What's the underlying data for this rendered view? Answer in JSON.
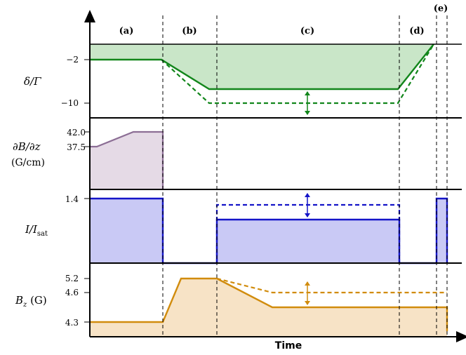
{
  "phases": [
    "(a)",
    "(b)",
    "(c)",
    "(d)",
    "(e)"
  ],
  "x_axis_label": "Time",
  "panels": {
    "detuning": {
      "label_main": "δ/Γ",
      "ticks": [
        "−2",
        "−10"
      ],
      "colors": {
        "line": "#12861b",
        "fill": "#c9e6c8"
      }
    },
    "gradient": {
      "label_line1": "∂B/∂z",
      "label_line2": "(G/cm)",
      "ticks": [
        "42.0",
        "37.5"
      ],
      "colors": {
        "line": "#8c6e95",
        "fill": "#e5dae6"
      }
    },
    "intensity": {
      "label_main": "I/I",
      "label_sub": "sat",
      "ticks": [
        "1.4"
      ],
      "colors": {
        "line": "#1414c8",
        "fill": "#c9c9f5"
      }
    },
    "bfield": {
      "label_main": "B",
      "label_sub": "z",
      "label_unit": " (G)",
      "ticks": [
        "5.2",
        "4.6",
        "4.3"
      ],
      "colors": {
        "line": "#d18c0d",
        "fill": "#f7e3c6"
      }
    }
  }
}
